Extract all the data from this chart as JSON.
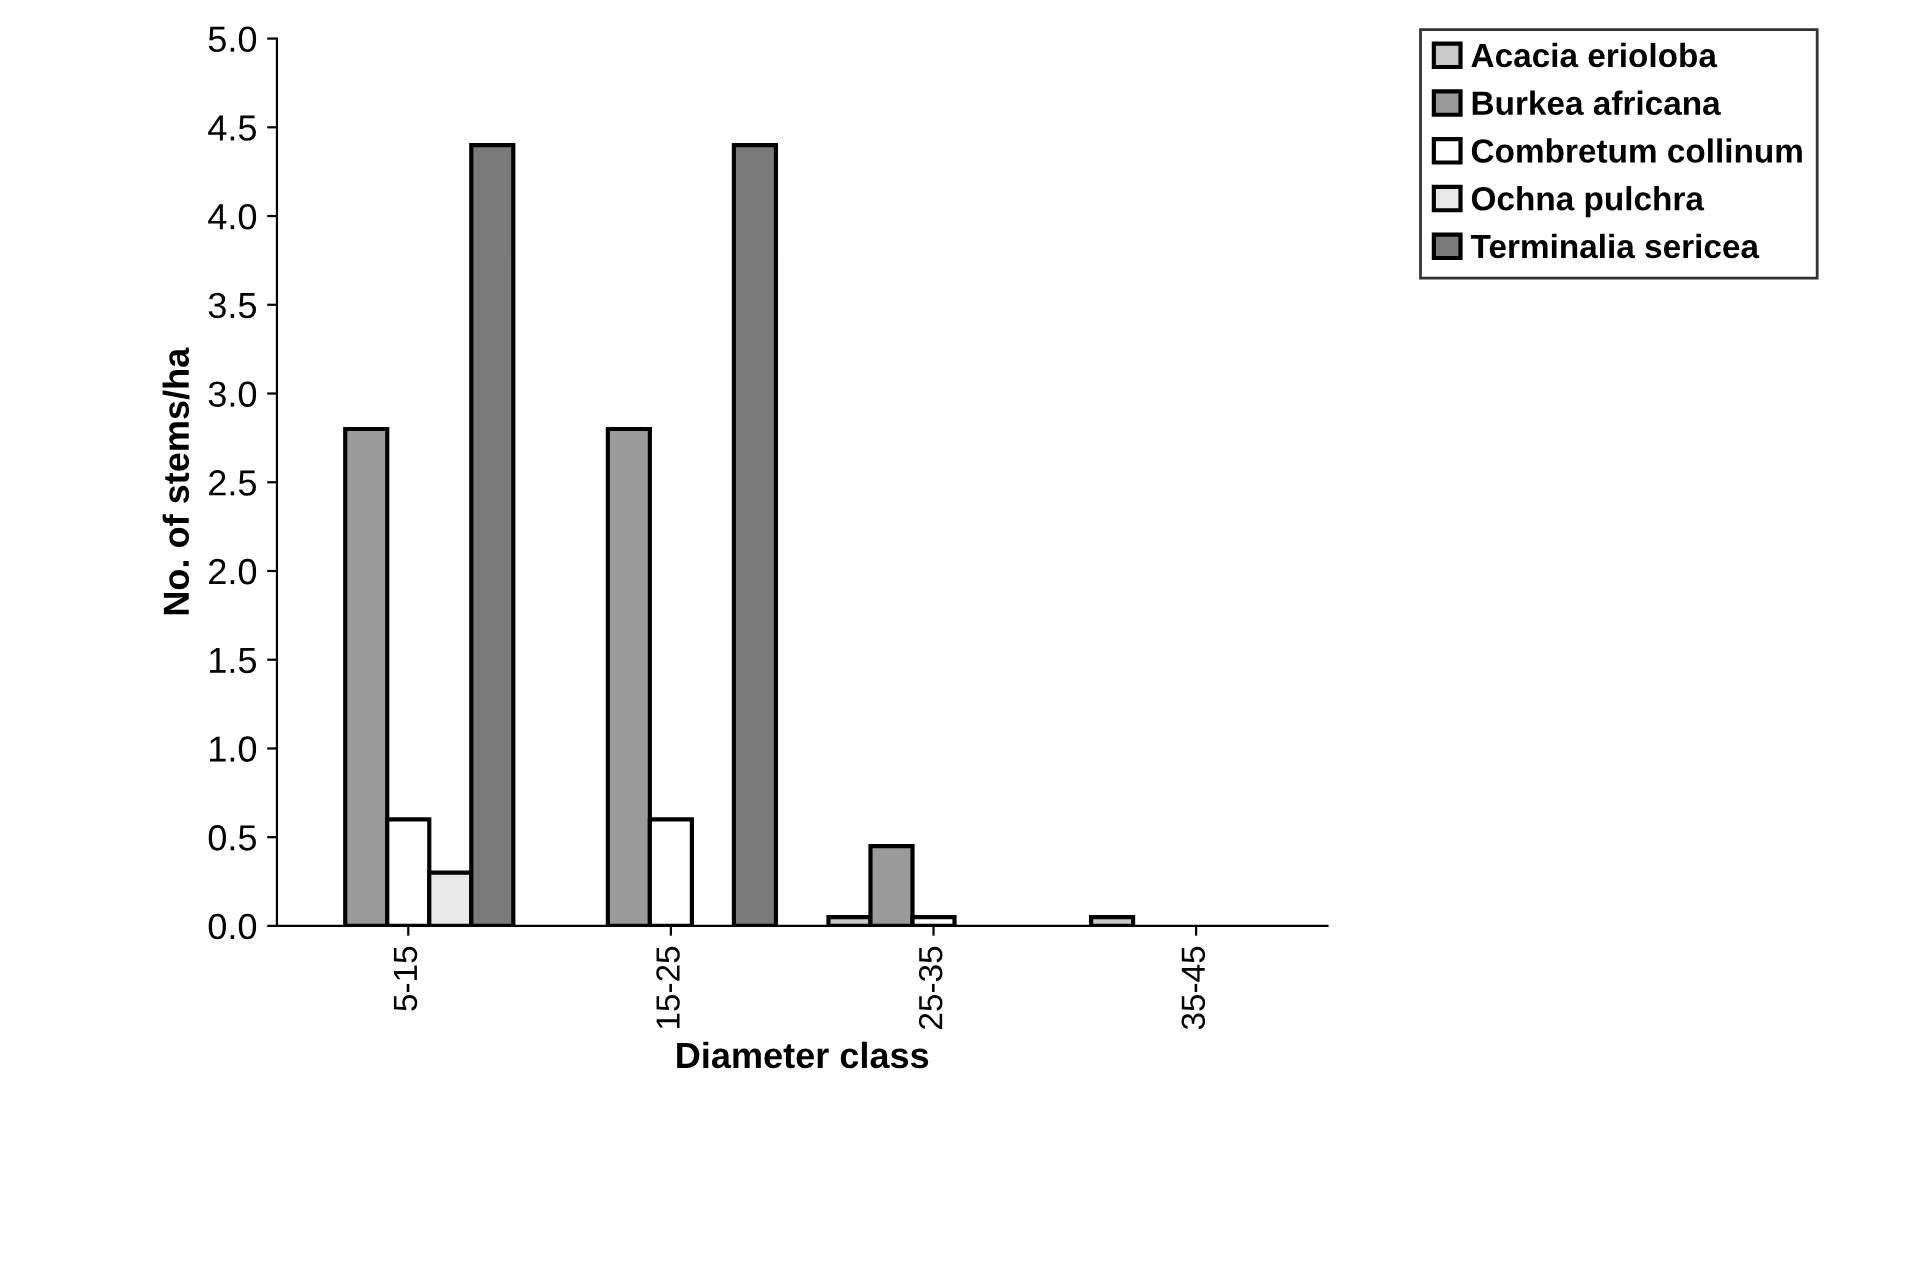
{
  "chart_data": {
    "type": "bar",
    "xlabel": "Diameter class",
    "ylabel": "No. of stems/ha",
    "categories": [
      "5-15",
      "15-25",
      "25-35",
      "35-45"
    ],
    "series": [
      {
        "name": "Acacia erioloba",
        "color": "#c8c8c8",
        "values": [
          null,
          null,
          0.05,
          0.05
        ]
      },
      {
        "name": "Burkea africana",
        "color": "#9a9a9a",
        "values": [
          2.8,
          2.8,
          0.45,
          null
        ]
      },
      {
        "name": "Combretum collinum",
        "color": "#ffffff",
        "values": [
          0.6,
          0.6,
          0.05,
          null
        ]
      },
      {
        "name": "Ochna pulchra",
        "color": "#e8e8e8",
        "values": [
          0.3,
          null,
          null,
          null
        ]
      },
      {
        "name": "Terminalia sericea",
        "color": "#7a7a7a",
        "values": [
          4.4,
          4.4,
          null,
          null
        ]
      }
    ],
    "ylim": [
      0,
      5
    ],
    "yticks": [
      {
        "value": 0,
        "label": "0.0"
      },
      {
        "value": 0.5,
        "label": "0.5"
      },
      {
        "value": 1,
        "label": "1.0"
      },
      {
        "value": 1.5,
        "label": "1.5"
      },
      {
        "value": 2,
        "label": "2.0"
      },
      {
        "value": 2.5,
        "label": "2.5"
      },
      {
        "value": 3,
        "label": "3.0"
      },
      {
        "value": 3.5,
        "label": "3.5"
      },
      {
        "value": 4,
        "label": "4.0"
      },
      {
        "value": 4.5,
        "label": "4.5"
      },
      {
        "value": 5,
        "label": "5.0"
      }
    ],
    "grid": false,
    "legend": "top right"
  }
}
